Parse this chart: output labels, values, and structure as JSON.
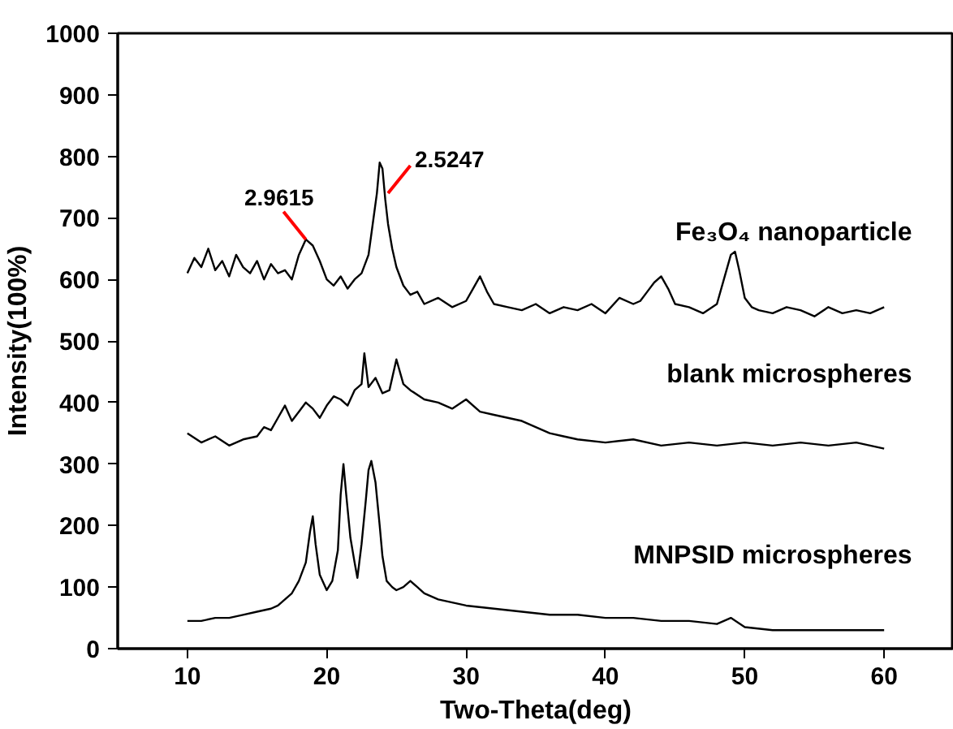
{
  "chart_data": {
    "type": "line",
    "xlabel": "Two-Theta(deg)",
    "ylabel": "Intensity(100%)",
    "xlim": [
      5,
      65
    ],
    "ylim": [
      0,
      1000
    ],
    "xticks": [
      10,
      20,
      30,
      40,
      50,
      60
    ],
    "yticks": [
      0,
      100,
      200,
      300,
      400,
      500,
      600,
      700,
      800,
      900,
      1000
    ],
    "grid": false,
    "annotations": [
      {
        "text": "2.9615",
        "x": 18.5,
        "y": 665
      },
      {
        "text": "2.5247",
        "x": 24.4,
        "y": 740
      }
    ],
    "series": [
      {
        "name": "Fe₃O₄ nanoparticle",
        "color": "#000000",
        "x": [
          10,
          10.5,
          11,
          11.5,
          12,
          12.5,
          13,
          13.5,
          14,
          14.5,
          15,
          15.5,
          16,
          16.5,
          17,
          17.5,
          18,
          18.5,
          19,
          19.5,
          20,
          20.5,
          21,
          21.5,
          22,
          22.5,
          23,
          23.3,
          23.6,
          23.8,
          24,
          24.2,
          24.4,
          24.7,
          25,
          25.5,
          26,
          26.5,
          27,
          28,
          29,
          30,
          30.5,
          31,
          31.5,
          32,
          33,
          34,
          35,
          36,
          37,
          38,
          39,
          40,
          41,
          42,
          42.5,
          43,
          43.5,
          44,
          44.5,
          45,
          46,
          47,
          48,
          48.5,
          49,
          49.3,
          49.6,
          50,
          50.5,
          51,
          52,
          53,
          54,
          55,
          56,
          57,
          58,
          59,
          60
        ],
        "values": [
          610,
          635,
          620,
          650,
          615,
          630,
          605,
          640,
          620,
          610,
          630,
          600,
          625,
          610,
          615,
          600,
          640,
          665,
          655,
          630,
          600,
          590,
          605,
          585,
          600,
          610,
          640,
          690,
          740,
          790,
          780,
          730,
          690,
          650,
          620,
          590,
          575,
          580,
          560,
          570,
          555,
          565,
          585,
          605,
          580,
          560,
          555,
          550,
          560,
          545,
          555,
          550,
          560,
          545,
          570,
          560,
          565,
          580,
          595,
          605,
          585,
          560,
          555,
          545,
          560,
          600,
          640,
          645,
          615,
          570,
          555,
          550,
          545,
          555,
          550,
          540,
          555,
          545,
          550,
          545,
          555
        ]
      },
      {
        "name": "blank microspheres",
        "color": "#000000",
        "x": [
          10,
          11,
          12,
          13,
          14,
          15,
          15.5,
          16,
          16.5,
          17,
          17.5,
          18,
          18.5,
          19,
          19.5,
          20,
          20.5,
          21,
          21.5,
          22,
          22.5,
          22.7,
          23,
          23.5,
          24,
          24.5,
          25,
          25.5,
          26,
          27,
          28,
          29,
          30,
          31,
          32,
          33,
          34,
          35,
          36,
          37,
          38,
          40,
          42,
          44,
          46,
          48,
          50,
          52,
          54,
          56,
          58,
          60
        ],
        "values": [
          350,
          335,
          345,
          330,
          340,
          345,
          360,
          355,
          375,
          395,
          370,
          385,
          400,
          390,
          375,
          395,
          410,
          405,
          395,
          420,
          430,
          480,
          425,
          440,
          415,
          420,
          470,
          430,
          420,
          405,
          400,
          390,
          405,
          385,
          380,
          375,
          370,
          360,
          350,
          345,
          340,
          335,
          340,
          330,
          335,
          330,
          335,
          330,
          335,
          330,
          335,
          325
        ]
      },
      {
        "name": "MNPSID microspheres",
        "color": "#000000",
        "x": [
          10,
          11,
          12,
          13,
          14,
          15,
          16,
          16.5,
          17,
          17.5,
          18,
          18.5,
          18.8,
          19,
          19.2,
          19.5,
          20,
          20.4,
          20.8,
          21,
          21.2,
          21.4,
          21.7,
          22,
          22.2,
          22.5,
          22.8,
          23,
          23.2,
          23.5,
          23.8,
          24,
          24.3,
          24.7,
          25,
          25.5,
          26,
          26.5,
          27,
          28,
          29,
          30,
          32,
          34,
          36,
          38,
          40,
          42,
          44,
          46,
          48,
          49,
          50,
          52,
          54,
          56,
          58,
          60
        ],
        "values": [
          45,
          45,
          50,
          50,
          55,
          60,
          65,
          70,
          80,
          90,
          110,
          140,
          190,
          215,
          170,
          120,
          95,
          110,
          160,
          250,
          300,
          250,
          180,
          140,
          115,
          170,
          240,
          290,
          305,
          270,
          200,
          150,
          110,
          100,
          95,
          100,
          110,
          100,
          90,
          80,
          75,
          70,
          65,
          60,
          55,
          55,
          50,
          50,
          45,
          45,
          40,
          50,
          35,
          30,
          30,
          30,
          30,
          30
        ]
      }
    ]
  }
}
